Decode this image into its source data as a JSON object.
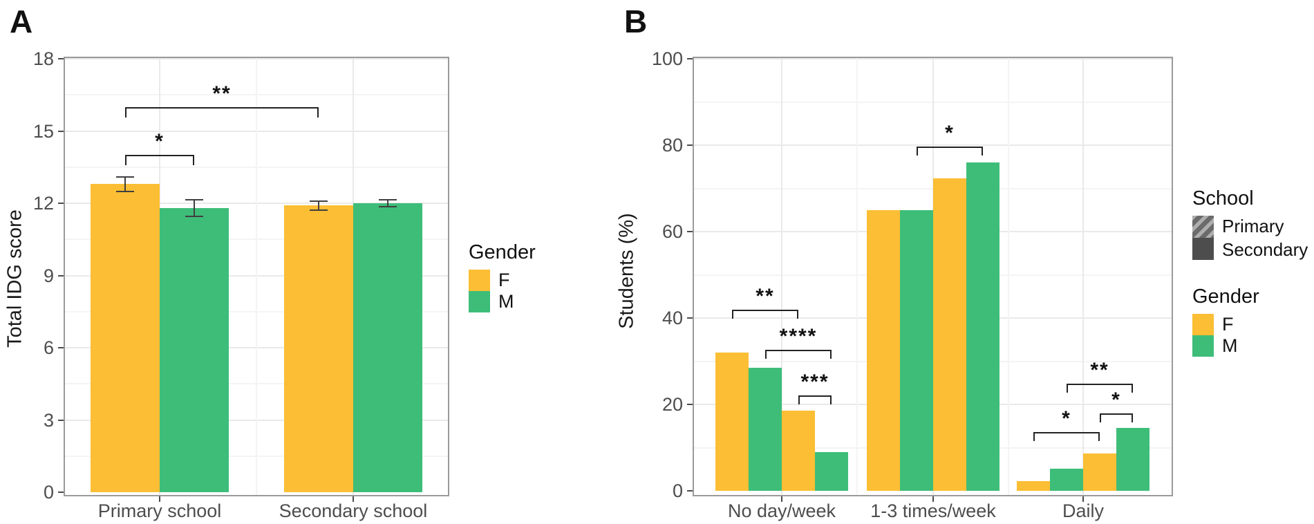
{
  "colors": {
    "female": "#FBBE34",
    "male": "#3EBD79",
    "school_dark": "#4d4d4d",
    "frame": "#9a9a9a",
    "grid_major": "#e9e9e9",
    "grid_minor": "#f4f4f4",
    "tick_text": "#4d4d4d",
    "bracket": "#222222"
  },
  "chart_data": [
    {
      "type": "bar",
      "panel_label": "A",
      "ylabel": "Total IDG score",
      "ylim": [
        0,
        18
      ],
      "yticks": [
        0,
        3,
        6,
        9,
        12,
        15,
        18
      ],
      "grid": "major+minor",
      "categories": [
        "Primary school",
        "Secondary school"
      ],
      "series": [
        {
          "name": "F",
          "color": "#FBBE34",
          "hatched": false,
          "values": [
            12.8,
            11.9
          ],
          "errors": [
            0.3,
            0.2
          ]
        },
        {
          "name": "M",
          "color": "#3EBD79",
          "hatched": false,
          "values": [
            11.8,
            12.0
          ],
          "errors": [
            0.35,
            0.15
          ]
        }
      ],
      "significance": [
        {
          "label": "*",
          "c1": 0,
          "s1": 0,
          "c2": 0,
          "s2": 1,
          "y": 14.0
        },
        {
          "label": "**",
          "c1": 0,
          "s1": 0,
          "c2": 1,
          "s2": 0,
          "y": 16.0
        }
      ],
      "legend_gender": {
        "title": "Gender",
        "entries": [
          {
            "label": "F",
            "color": "#FBBE34"
          },
          {
            "label": "M",
            "color": "#3EBD79"
          }
        ]
      }
    },
    {
      "type": "bar",
      "panel_label": "B",
      "ylabel": "Students (%)",
      "ylim": [
        0,
        100
      ],
      "yticks": [
        0,
        20,
        40,
        60,
        80,
        100
      ],
      "grid": "major+minor",
      "categories": [
        "No day/week",
        "1-3 times/week",
        "Daily"
      ],
      "series": [
        {
          "name": "Primary F",
          "school": "Primary",
          "gender": "F",
          "color": "#FBBE34",
          "hatched": true,
          "values": [
            32.0,
            65.0,
            2.3
          ]
        },
        {
          "name": "Primary M",
          "school": "Primary",
          "gender": "M",
          "color": "#3EBD79",
          "hatched": true,
          "values": [
            28.5,
            65.0,
            5.2
          ]
        },
        {
          "name": "Secondary F",
          "school": "Secondary",
          "gender": "F",
          "color": "#FBBE34",
          "hatched": false,
          "values": [
            18.5,
            72.3,
            8.7
          ]
        },
        {
          "name": "Secondary M",
          "school": "Secondary",
          "gender": "M",
          "color": "#3EBD79",
          "hatched": false,
          "values": [
            9.0,
            76.0,
            14.6
          ]
        }
      ],
      "significance": [
        {
          "label": "**",
          "c1": 0,
          "s1": 0,
          "c2": 0,
          "s2": 2,
          "y": 41.9
        },
        {
          "label": "****",
          "c1": 0,
          "s1": 1,
          "c2": 0,
          "s2": 3,
          "y": 32.6
        },
        {
          "label": "***",
          "c1": 0,
          "s1": 2,
          "c2": 0,
          "s2": 3,
          "y": 22.1
        },
        {
          "label": "*",
          "c1": 1,
          "s1": 1,
          "c2": 1,
          "s2": 3,
          "y": 79.7
        },
        {
          "label": "*",
          "c1": 2,
          "s1": 0,
          "c2": 2,
          "s2": 2,
          "y": 13.6
        },
        {
          "label": "*",
          "c1": 2,
          "s1": 2,
          "c2": 2,
          "s2": 3,
          "y": 17.9
        },
        {
          "label": "**",
          "c1": 2,
          "s1": 1,
          "c2": 2,
          "s2": 3,
          "y": 24.8
        }
      ],
      "legend_school": {
        "title": "School",
        "entries": [
          {
            "label": "Primary",
            "pattern": "hatched"
          },
          {
            "label": "Secondary",
            "pattern": "solid"
          }
        ]
      },
      "legend_gender": {
        "title": "Gender",
        "entries": [
          {
            "label": "F",
            "color": "#FBBE34"
          },
          {
            "label": "M",
            "color": "#3EBD79"
          }
        ]
      }
    }
  ]
}
